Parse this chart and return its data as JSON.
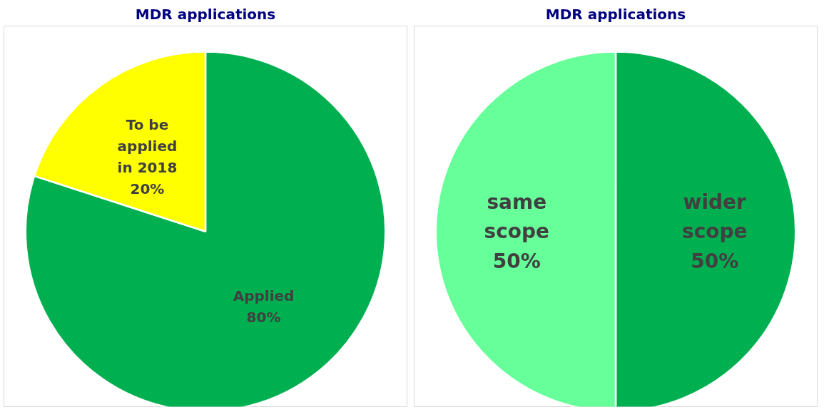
{
  "chart_data": [
    {
      "type": "pie",
      "title": "MDR applications",
      "categories": [
        "Applied",
        "To be applied in 2018"
      ],
      "values": [
        80,
        20
      ],
      "colors": [
        "#00b050",
        "#ffff00"
      ],
      "value_labels": [
        "80%",
        "20%"
      ]
    },
    {
      "type": "pie",
      "title": "MDR applications",
      "categories": [
        "wider scope",
        "same scope"
      ],
      "values": [
        50,
        50
      ],
      "colors": [
        "#00b050",
        "#66ff99"
      ],
      "value_labels": [
        "50%",
        "50%"
      ]
    }
  ]
}
